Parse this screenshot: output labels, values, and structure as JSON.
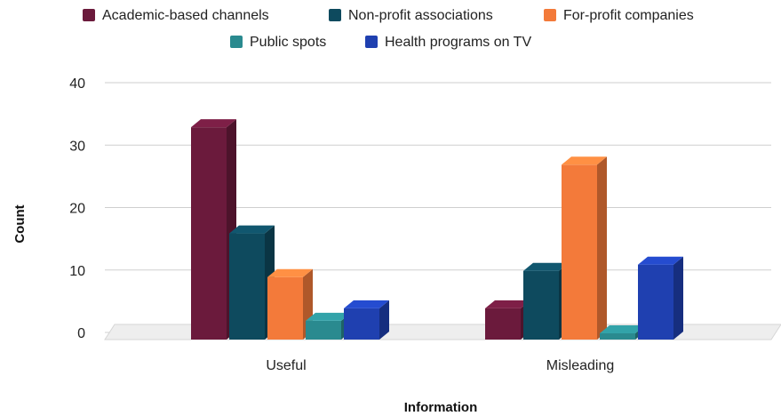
{
  "chart_data": {
    "type": "bar",
    "style": "3d-clustered-column",
    "title": "",
    "xlabel": "Information",
    "ylabel": "Count",
    "categories": [
      "Useful",
      "Misleading"
    ],
    "series": [
      {
        "name": "Academic-based channels",
        "color": "#6b1a3c",
        "values": [
          34,
          5
        ]
      },
      {
        "name": "Non-profit associations",
        "color": "#0e4a5e",
        "values": [
          17,
          11
        ]
      },
      {
        "name": "For-profit companies",
        "color": "#f37a3a",
        "values": [
          10,
          28
        ]
      },
      {
        "name": "Public spots",
        "color": "#2a8a8f",
        "values": [
          3,
          1
        ]
      },
      {
        "name": "Health programs on TV",
        "color": "#1f40b0",
        "values": [
          5,
          12
        ]
      }
    ],
    "ylim": [
      0,
      40
    ],
    "yticks": [
      0,
      10,
      20,
      30,
      40
    ],
    "grid": true,
    "legend_position": "top"
  }
}
